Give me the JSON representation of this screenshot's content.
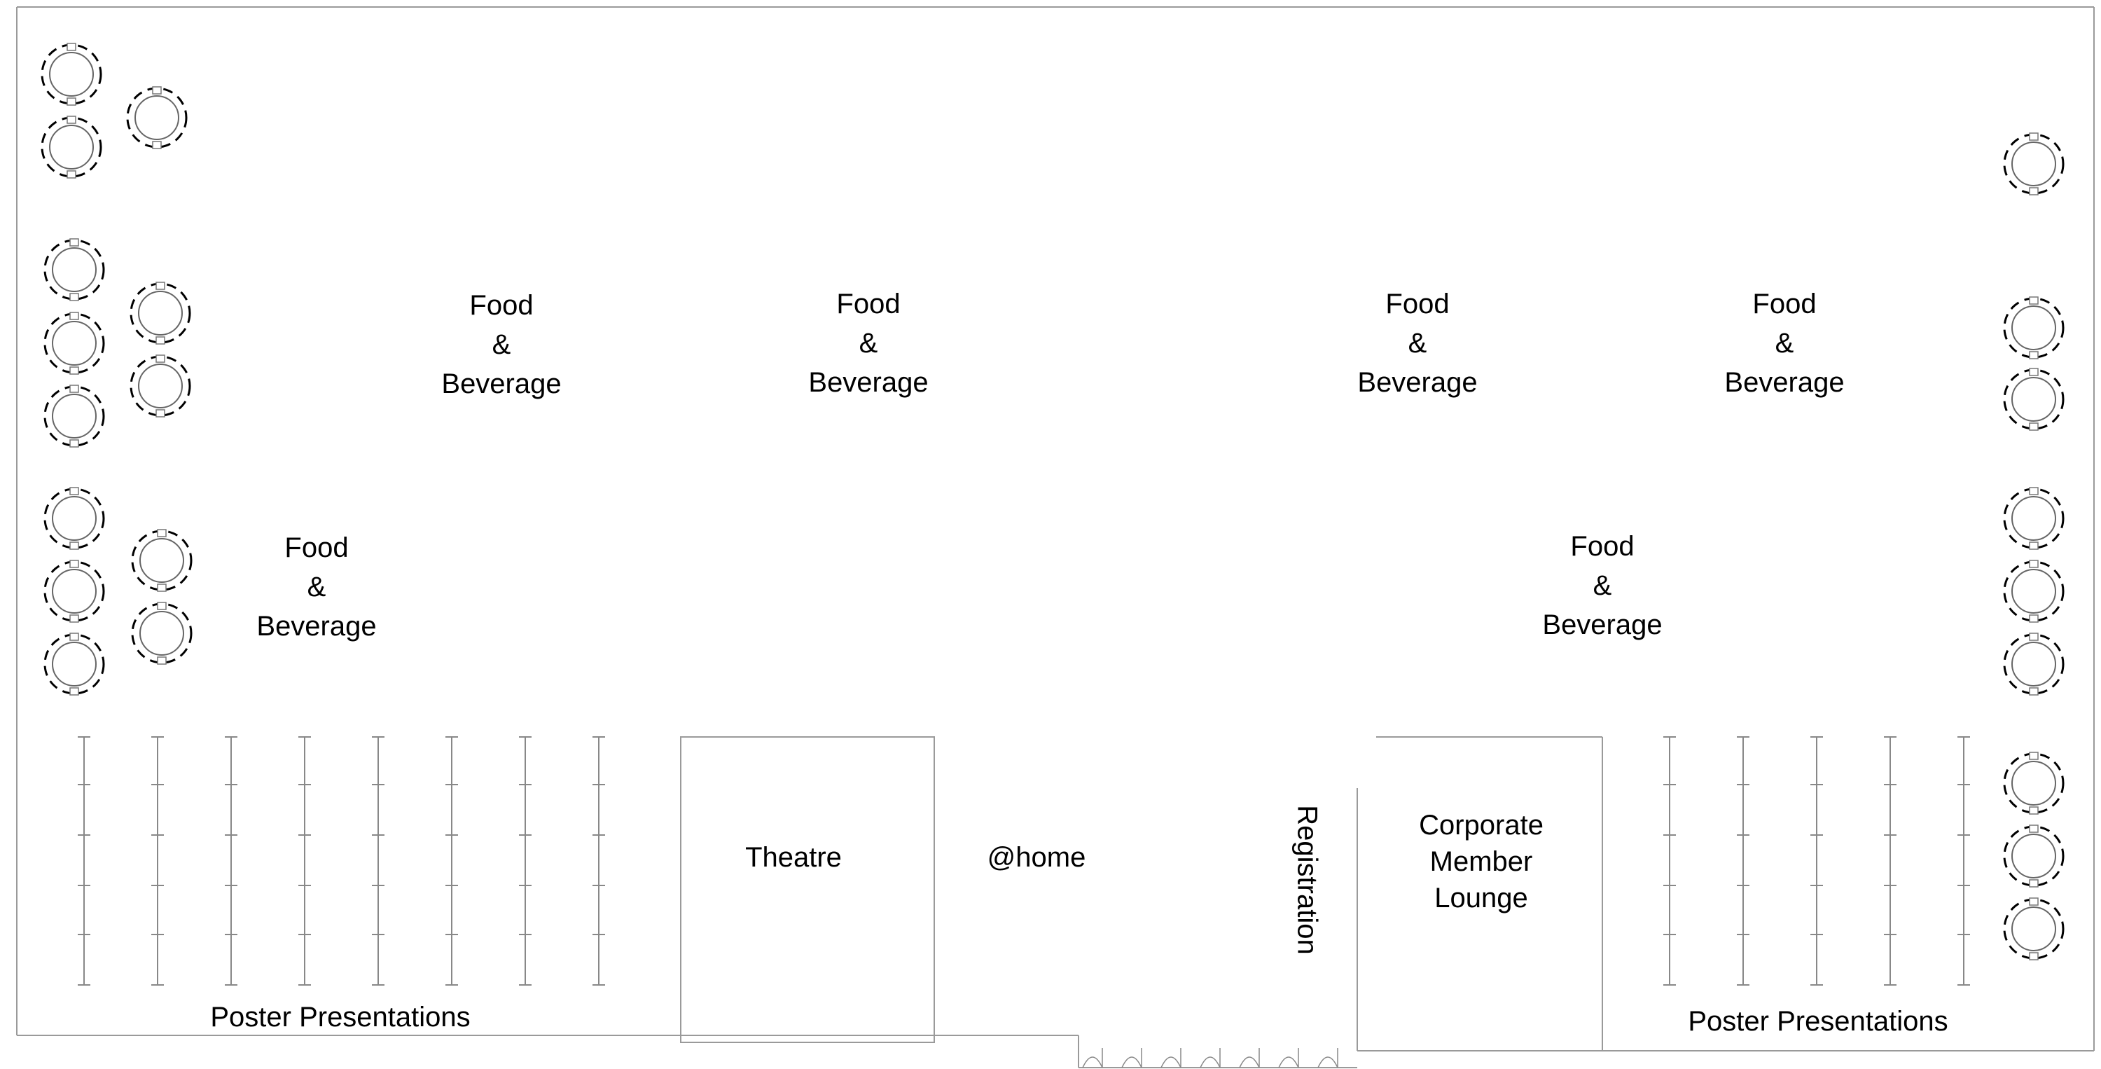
{
  "areas": {
    "food_beverage": [
      {
        "lines": [
          "Food",
          "&",
          "Beverage"
        ]
      },
      {
        "lines": [
          "Food",
          "&",
          "Beverage"
        ]
      },
      {
        "lines": [
          "Food",
          "&",
          "Beverage"
        ]
      },
      {
        "lines": [
          "Food",
          "&",
          "Beverage"
        ]
      },
      {
        "lines": [
          "Food",
          "&",
          "Beverage"
        ]
      },
      {
        "lines": [
          "Food",
          "&",
          "Beverage"
        ]
      }
    ],
    "theatre": "Theatre",
    "home": "@home",
    "registration": "Registration",
    "corporate_lounge": [
      "Corporate",
      "Member",
      "Lounge"
    ],
    "poster_left": "Poster Presentations",
    "poster_right": "Poster Presentations"
  }
}
